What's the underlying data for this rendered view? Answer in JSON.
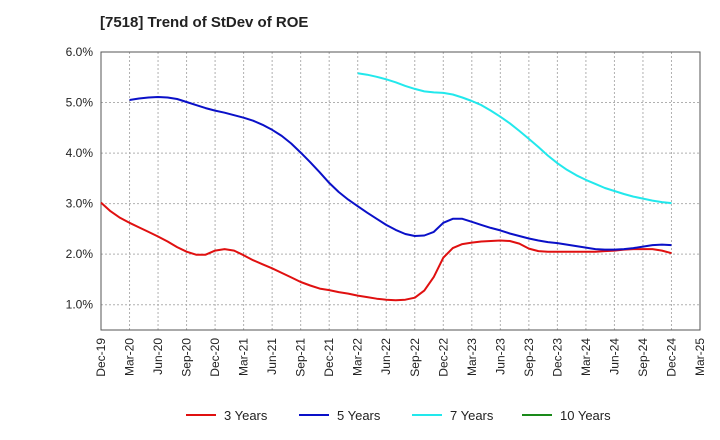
{
  "chart_data": {
    "type": "line",
    "title": "[7518]  Trend of StDev of ROE",
    "xlabel": "",
    "ylabel": "",
    "x_ticks": [
      "Dec-19",
      "Mar-20",
      "Jun-20",
      "Sep-20",
      "Dec-20",
      "Mar-21",
      "Jun-21",
      "Sep-21",
      "Dec-21",
      "Mar-22",
      "Jun-22",
      "Sep-22",
      "Dec-22",
      "Mar-23",
      "Jun-23",
      "Sep-23",
      "Dec-23",
      "Mar-24",
      "Jun-24",
      "Sep-24",
      "Dec-24",
      "Mar-25"
    ],
    "y_ticks": [
      "1.0%",
      "2.0%",
      "3.0%",
      "4.0%",
      "5.0%",
      "6.0%"
    ],
    "y_tick_values": [
      1.0,
      2.0,
      3.0,
      4.0,
      5.0,
      6.0
    ],
    "ylim": [
      0.5,
      6.0
    ],
    "grid": true,
    "legend_position": "bottom",
    "series": [
      {
        "name": "3 Years",
        "color": "#e01010",
        "points": [
          [
            "Dec-19",
            3.02
          ],
          [
            "Jan-20",
            2.85
          ],
          [
            "Feb-20",
            2.72
          ],
          [
            "Mar-20",
            2.62
          ],
          [
            "Apr-20",
            2.53
          ],
          [
            "May-20",
            2.44
          ],
          [
            "Jun-20",
            2.35
          ],
          [
            "Jul-20",
            2.25
          ],
          [
            "Aug-20",
            2.14
          ],
          [
            "Sep-20",
            2.05
          ],
          [
            "Oct-20",
            1.99
          ],
          [
            "Nov-20",
            1.99
          ],
          [
            "Dec-20",
            2.07
          ],
          [
            "Jan-21",
            2.1
          ],
          [
            "Feb-21",
            2.07
          ],
          [
            "Mar-21",
            1.98
          ],
          [
            "Apr-21",
            1.88
          ],
          [
            "May-21",
            1.8
          ],
          [
            "Jun-21",
            1.72
          ],
          [
            "Jul-21",
            1.63
          ],
          [
            "Aug-21",
            1.54
          ],
          [
            "Sep-21",
            1.45
          ],
          [
            "Oct-21",
            1.38
          ],
          [
            "Nov-21",
            1.32
          ],
          [
            "Dec-21",
            1.29
          ],
          [
            "Jan-22",
            1.25
          ],
          [
            "Feb-22",
            1.22
          ],
          [
            "Mar-22",
            1.18
          ],
          [
            "Apr-22",
            1.15
          ],
          [
            "May-22",
            1.12
          ],
          [
            "Jun-22",
            1.1
          ],
          [
            "Jul-22",
            1.09
          ],
          [
            "Aug-22",
            1.1
          ],
          [
            "Sep-22",
            1.14
          ],
          [
            "Oct-22",
            1.28
          ],
          [
            "Nov-22",
            1.55
          ],
          [
            "Dec-22",
            1.93
          ],
          [
            "Jan-23",
            2.12
          ],
          [
            "Feb-23",
            2.2
          ],
          [
            "Mar-23",
            2.23
          ],
          [
            "Apr-23",
            2.25
          ],
          [
            "May-23",
            2.26
          ],
          [
            "Jun-23",
            2.27
          ],
          [
            "Jul-23",
            2.26
          ],
          [
            "Aug-23",
            2.21
          ],
          [
            "Sep-23",
            2.11
          ],
          [
            "Oct-23",
            2.06
          ],
          [
            "Nov-23",
            2.05
          ],
          [
            "Dec-23",
            2.05
          ],
          [
            "Jan-24",
            2.05
          ],
          [
            "Feb-24",
            2.05
          ],
          [
            "Mar-24",
            2.05
          ],
          [
            "Apr-24",
            2.05
          ],
          [
            "May-24",
            2.06
          ],
          [
            "Jun-24",
            2.07
          ],
          [
            "Jul-24",
            2.09
          ],
          [
            "Aug-24",
            2.1
          ],
          [
            "Sep-24",
            2.1
          ],
          [
            "Oct-24",
            2.1
          ],
          [
            "Nov-24",
            2.07
          ],
          [
            "Dec-24",
            2.02
          ]
        ]
      },
      {
        "name": "5 Years",
        "color": "#0a10c8",
        "points": [
          [
            "Mar-20",
            5.05
          ],
          [
            "Apr-20",
            5.08
          ],
          [
            "May-20",
            5.1
          ],
          [
            "Jun-20",
            5.11
          ],
          [
            "Jul-20",
            5.1
          ],
          [
            "Aug-20",
            5.07
          ],
          [
            "Sep-20",
            5.01
          ],
          [
            "Oct-20",
            4.95
          ],
          [
            "Nov-20",
            4.89
          ],
          [
            "Dec-20",
            4.84
          ],
          [
            "Jan-21",
            4.8
          ],
          [
            "Feb-21",
            4.75
          ],
          [
            "Mar-21",
            4.7
          ],
          [
            "Apr-21",
            4.64
          ],
          [
            "May-21",
            4.56
          ],
          [
            "Jun-21",
            4.46
          ],
          [
            "Jul-21",
            4.34
          ],
          [
            "Aug-21",
            4.19
          ],
          [
            "Sep-21",
            4.01
          ],
          [
            "Oct-21",
            3.82
          ],
          [
            "Nov-21",
            3.62
          ],
          [
            "Dec-21",
            3.41
          ],
          [
            "Jan-22",
            3.23
          ],
          [
            "Feb-22",
            3.08
          ],
          [
            "Mar-22",
            2.95
          ],
          [
            "Apr-22",
            2.82
          ],
          [
            "May-22",
            2.7
          ],
          [
            "Jun-22",
            2.58
          ],
          [
            "Jul-22",
            2.48
          ],
          [
            "Aug-22",
            2.4
          ],
          [
            "Sep-22",
            2.36
          ],
          [
            "Oct-22",
            2.37
          ],
          [
            "Nov-22",
            2.44
          ],
          [
            "Dec-22",
            2.62
          ],
          [
            "Jan-23",
            2.7
          ],
          [
            "Feb-23",
            2.7
          ],
          [
            "Mar-23",
            2.64
          ],
          [
            "Apr-23",
            2.58
          ],
          [
            "May-23",
            2.52
          ],
          [
            "Jun-23",
            2.47
          ],
          [
            "Jul-23",
            2.41
          ],
          [
            "Aug-23",
            2.36
          ],
          [
            "Sep-23",
            2.31
          ],
          [
            "Oct-23",
            2.27
          ],
          [
            "Nov-23",
            2.24
          ],
          [
            "Dec-23",
            2.22
          ],
          [
            "Jan-24",
            2.19
          ],
          [
            "Feb-24",
            2.16
          ],
          [
            "Mar-24",
            2.13
          ],
          [
            "Apr-24",
            2.1
          ],
          [
            "May-24",
            2.09
          ],
          [
            "Jun-24",
            2.09
          ],
          [
            "Jul-24",
            2.1
          ],
          [
            "Aug-24",
            2.12
          ],
          [
            "Sep-24",
            2.15
          ],
          [
            "Oct-24",
            2.18
          ],
          [
            "Nov-24",
            2.19
          ],
          [
            "Dec-24",
            2.18
          ]
        ]
      },
      {
        "name": "7 Years",
        "color": "#22e8ec",
        "points": [
          [
            "Mar-22",
            5.58
          ],
          [
            "Apr-22",
            5.55
          ],
          [
            "May-22",
            5.51
          ],
          [
            "Jun-22",
            5.46
          ],
          [
            "Jul-22",
            5.4
          ],
          [
            "Aug-22",
            5.33
          ],
          [
            "Sep-22",
            5.27
          ],
          [
            "Oct-22",
            5.22
          ],
          [
            "Nov-22",
            5.2
          ],
          [
            "Dec-22",
            5.19
          ],
          [
            "Jan-23",
            5.16
          ],
          [
            "Feb-23",
            5.1
          ],
          [
            "Mar-23",
            5.03
          ],
          [
            "Apr-23",
            4.95
          ],
          [
            "May-23",
            4.84
          ],
          [
            "Jun-23",
            4.72
          ],
          [
            "Jul-23",
            4.59
          ],
          [
            "Aug-23",
            4.44
          ],
          [
            "Sep-23",
            4.28
          ],
          [
            "Oct-23",
            4.12
          ],
          [
            "Nov-23",
            3.95
          ],
          [
            "Dec-23",
            3.8
          ],
          [
            "Jan-24",
            3.67
          ],
          [
            "Feb-24",
            3.56
          ],
          [
            "Mar-24",
            3.47
          ],
          [
            "Apr-24",
            3.39
          ],
          [
            "May-24",
            3.31
          ],
          [
            "Jun-24",
            3.25
          ],
          [
            "Jul-24",
            3.19
          ],
          [
            "Aug-24",
            3.14
          ],
          [
            "Sep-24",
            3.1
          ],
          [
            "Oct-24",
            3.06
          ],
          [
            "Nov-24",
            3.03
          ],
          [
            "Dec-24",
            3.01
          ]
        ]
      },
      {
        "name": "10 Years",
        "color": "#1a8a1a",
        "points": []
      }
    ]
  }
}
